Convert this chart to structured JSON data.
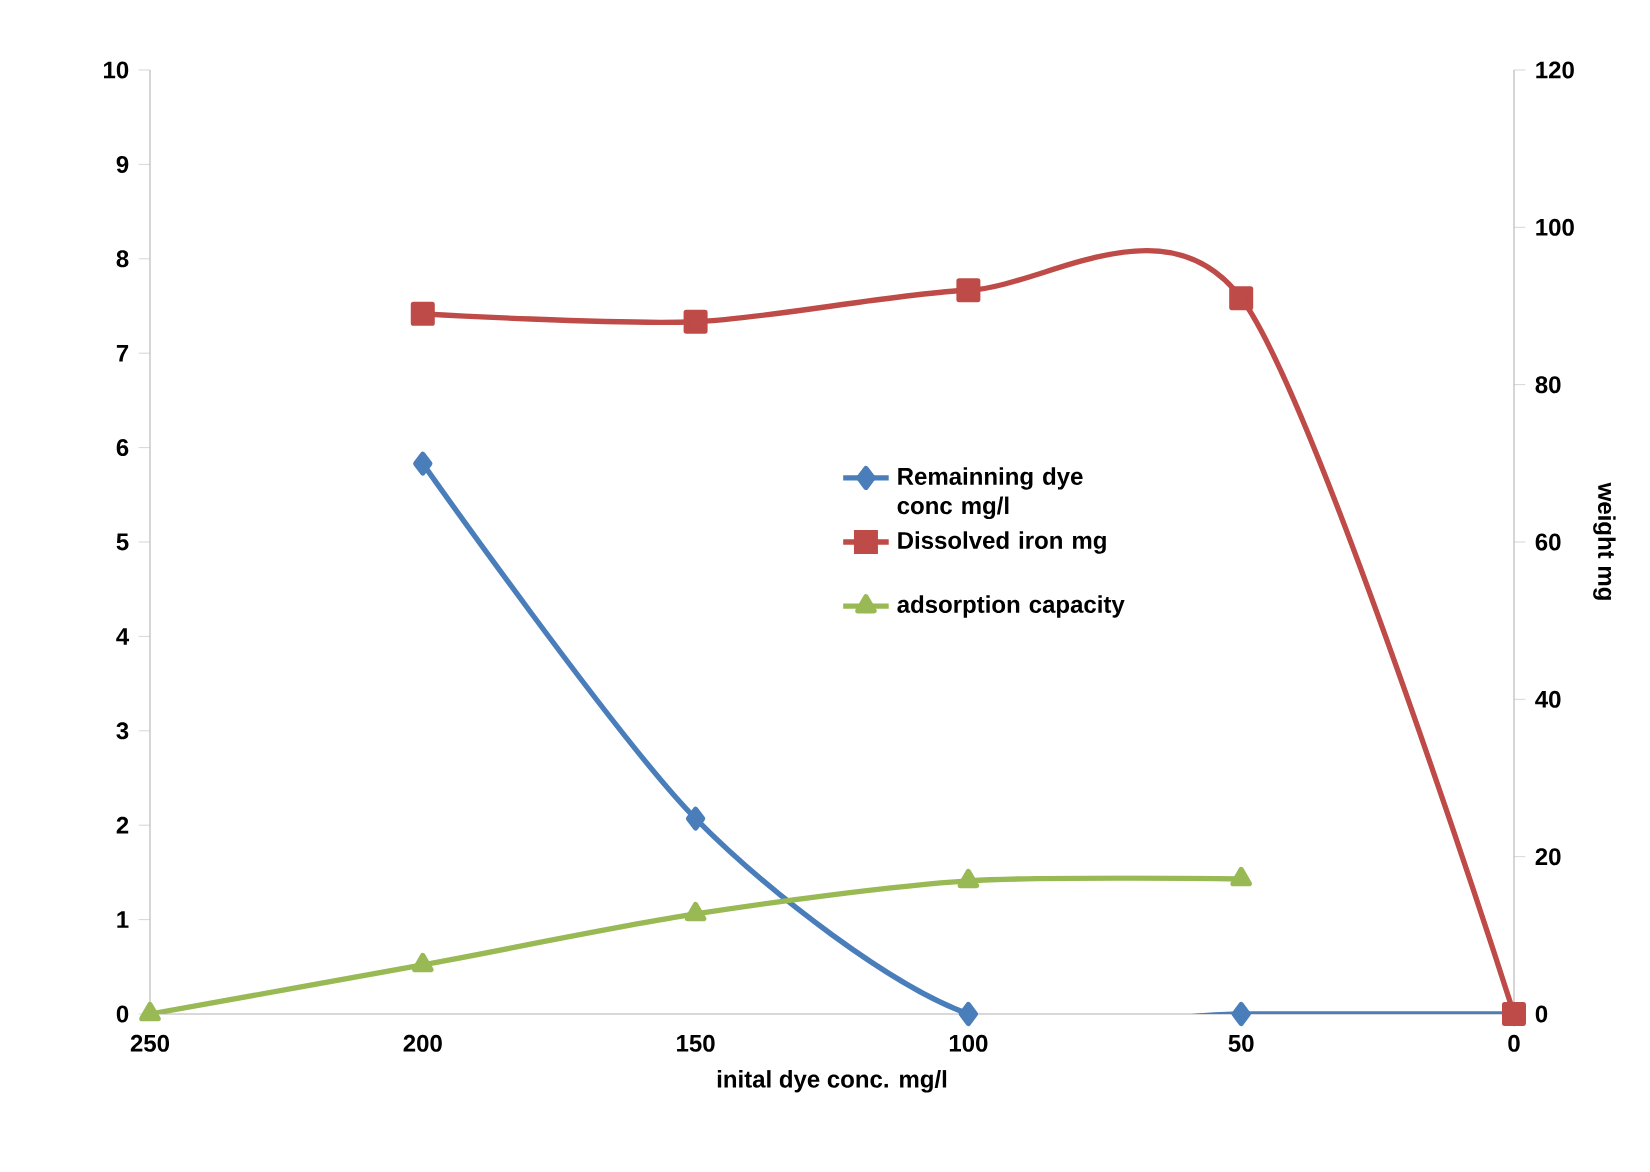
{
  "chart_data": {
    "type": "line",
    "xlabel": "inital dye conc. mg/l",
    "y2label": "weight mg",
    "x": [
      250,
      200,
      150,
      100,
      50,
      0
    ],
    "xlim": [
      250,
      0
    ],
    "xticks": [
      250,
      200,
      150,
      100,
      50,
      0
    ],
    "ylim": [
      0,
      10
    ],
    "yticks": [
      0,
      1,
      2,
      3,
      4,
      5,
      6,
      7,
      8,
      9,
      10
    ],
    "y2lim": [
      0,
      120
    ],
    "y2ticks": [
      0,
      20,
      40,
      60,
      80,
      100,
      120
    ],
    "grid": false,
    "legend": "right",
    "line_style": "solid",
    "series": [
      {
        "name": "Remainning dye conc mg/l",
        "color": "#4a7ebb",
        "marker": "diamond",
        "values": [
          null,
          5.83,
          2.07,
          0,
          0,
          0
        ]
      },
      {
        "name": "Dissolved iron mg",
        "color": "#be4b48",
        "marker": "square",
        "axis": "y2",
        "values": [
          null,
          89,
          88,
          92,
          91,
          0
        ]
      },
      {
        "name": "adsorption capacity",
        "color": "#98b954",
        "marker": "triangle",
        "values": [
          0,
          0.52,
          1.06,
          1.41,
          1.43,
          null
        ]
      }
    ]
  }
}
